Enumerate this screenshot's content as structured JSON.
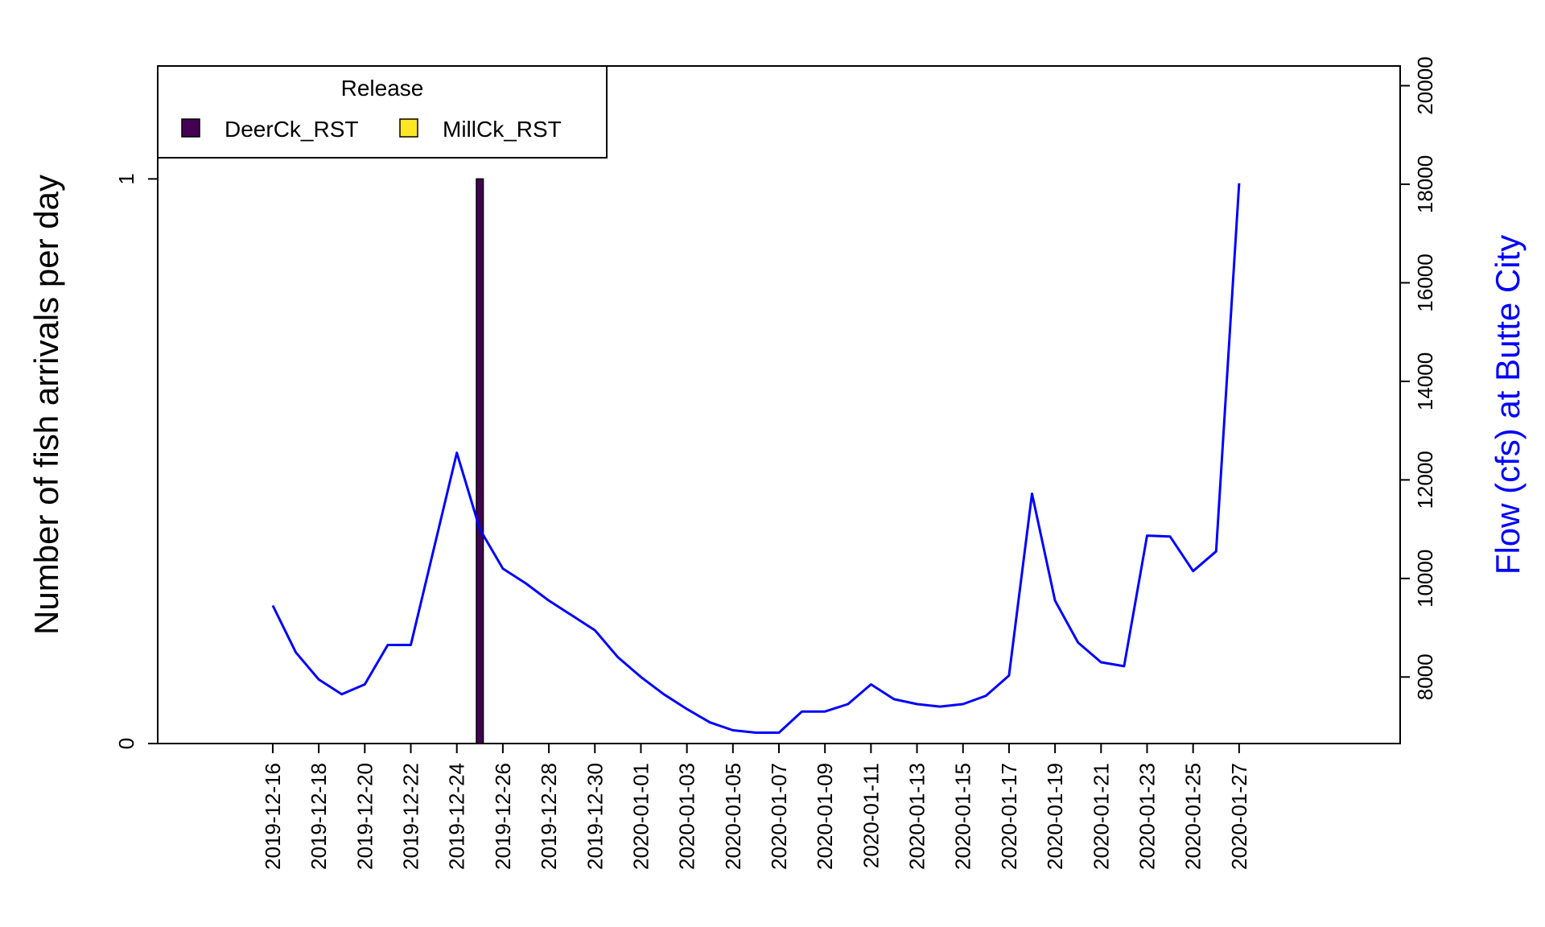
{
  "chart_data": {
    "type": "bar",
    "title": "",
    "ylabel": "Number of fish arrivals per day",
    "y2label": "Flow (cfs) at Butte City",
    "ylim": [
      0,
      1.2
    ],
    "y_ticks": [
      {
        "value": 0,
        "label": "0"
      },
      {
        "value": 1,
        "label": "1"
      }
    ],
    "y2lim": [
      6650,
      20400
    ],
    "y2_ticks": [
      {
        "value": 8000,
        "label": "8000"
      },
      {
        "value": 10000,
        "label": "10000"
      },
      {
        "value": 12000,
        "label": "12000"
      },
      {
        "value": 14000,
        "label": "14000"
      },
      {
        "value": 16000,
        "label": "16000"
      },
      {
        "value": 18000,
        "label": "18000"
      },
      {
        "value": 20000,
        "label": "20000"
      }
    ],
    "x_range": [
      "2019-12-11",
      "2020-02-03"
    ],
    "x_tick_labels": [
      "2019-12-16",
      "2019-12-18",
      "2019-12-20",
      "2019-12-22",
      "2019-12-24",
      "2019-12-26",
      "2019-12-28",
      "2019-12-30",
      "2020-01-01",
      "2020-01-03",
      "2020-01-05",
      "2020-01-07",
      "2020-01-09",
      "2020-01-11",
      "2020-01-13",
      "2020-01-15",
      "2020-01-17",
      "2020-01-19",
      "2020-01-21",
      "2020-01-23",
      "2020-01-25",
      "2020-01-27"
    ],
    "legend": {
      "title": "Release",
      "position": "top-left",
      "entries": [
        {
          "name": "DeerCk_RST",
          "color": "#440154"
        },
        {
          "name": "MillCk_RST",
          "color": "#FDE725"
        }
      ]
    },
    "series": [
      {
        "name": "DeerCk_RST",
        "type": "bar",
        "color": "#440154",
        "x": [
          "2019-12-25"
        ],
        "values": [
          1
        ]
      },
      {
        "name": "MillCk_RST",
        "type": "bar",
        "color": "#FDE725",
        "x": [],
        "values": []
      }
    ],
    "flow": {
      "type": "line",
      "color": "#0000FF",
      "axis": "right",
      "x": [
        "2019-12-16",
        "2019-12-17",
        "2019-12-18",
        "2019-12-19",
        "2019-12-20",
        "2019-12-21",
        "2019-12-22",
        "2019-12-23",
        "2019-12-24",
        "2019-12-25",
        "2019-12-26",
        "2019-12-27",
        "2019-12-28",
        "2019-12-29",
        "2019-12-30",
        "2019-12-31",
        "2020-01-01",
        "2020-01-02",
        "2020-01-03",
        "2020-01-04",
        "2020-01-05",
        "2020-01-06",
        "2020-01-07",
        "2020-01-08",
        "2020-01-09",
        "2020-01-10",
        "2020-01-11",
        "2020-01-12",
        "2020-01-13",
        "2020-01-14",
        "2020-01-15",
        "2020-01-16",
        "2020-01-17",
        "2020-01-18",
        "2020-01-19",
        "2020-01-20",
        "2020-01-21",
        "2020-01-22",
        "2020-01-23",
        "2020-01-24",
        "2020-01-25",
        "2020-01-26",
        "2020-01-27"
      ],
      "values": [
        9450,
        8500,
        7950,
        7650,
        7850,
        8650,
        8650,
        10600,
        12550,
        11000,
        10200,
        9900,
        9550,
        9250,
        8950,
        8400,
        8000,
        7650,
        7350,
        7080,
        6920,
        6870,
        6870,
        7300,
        7300,
        7450,
        7850,
        7550,
        7450,
        7400,
        7450,
        7620,
        8030,
        11720,
        9550,
        8700,
        8300,
        8220,
        10870,
        10850,
        10150,
        10550,
        18020
      ]
    }
  }
}
